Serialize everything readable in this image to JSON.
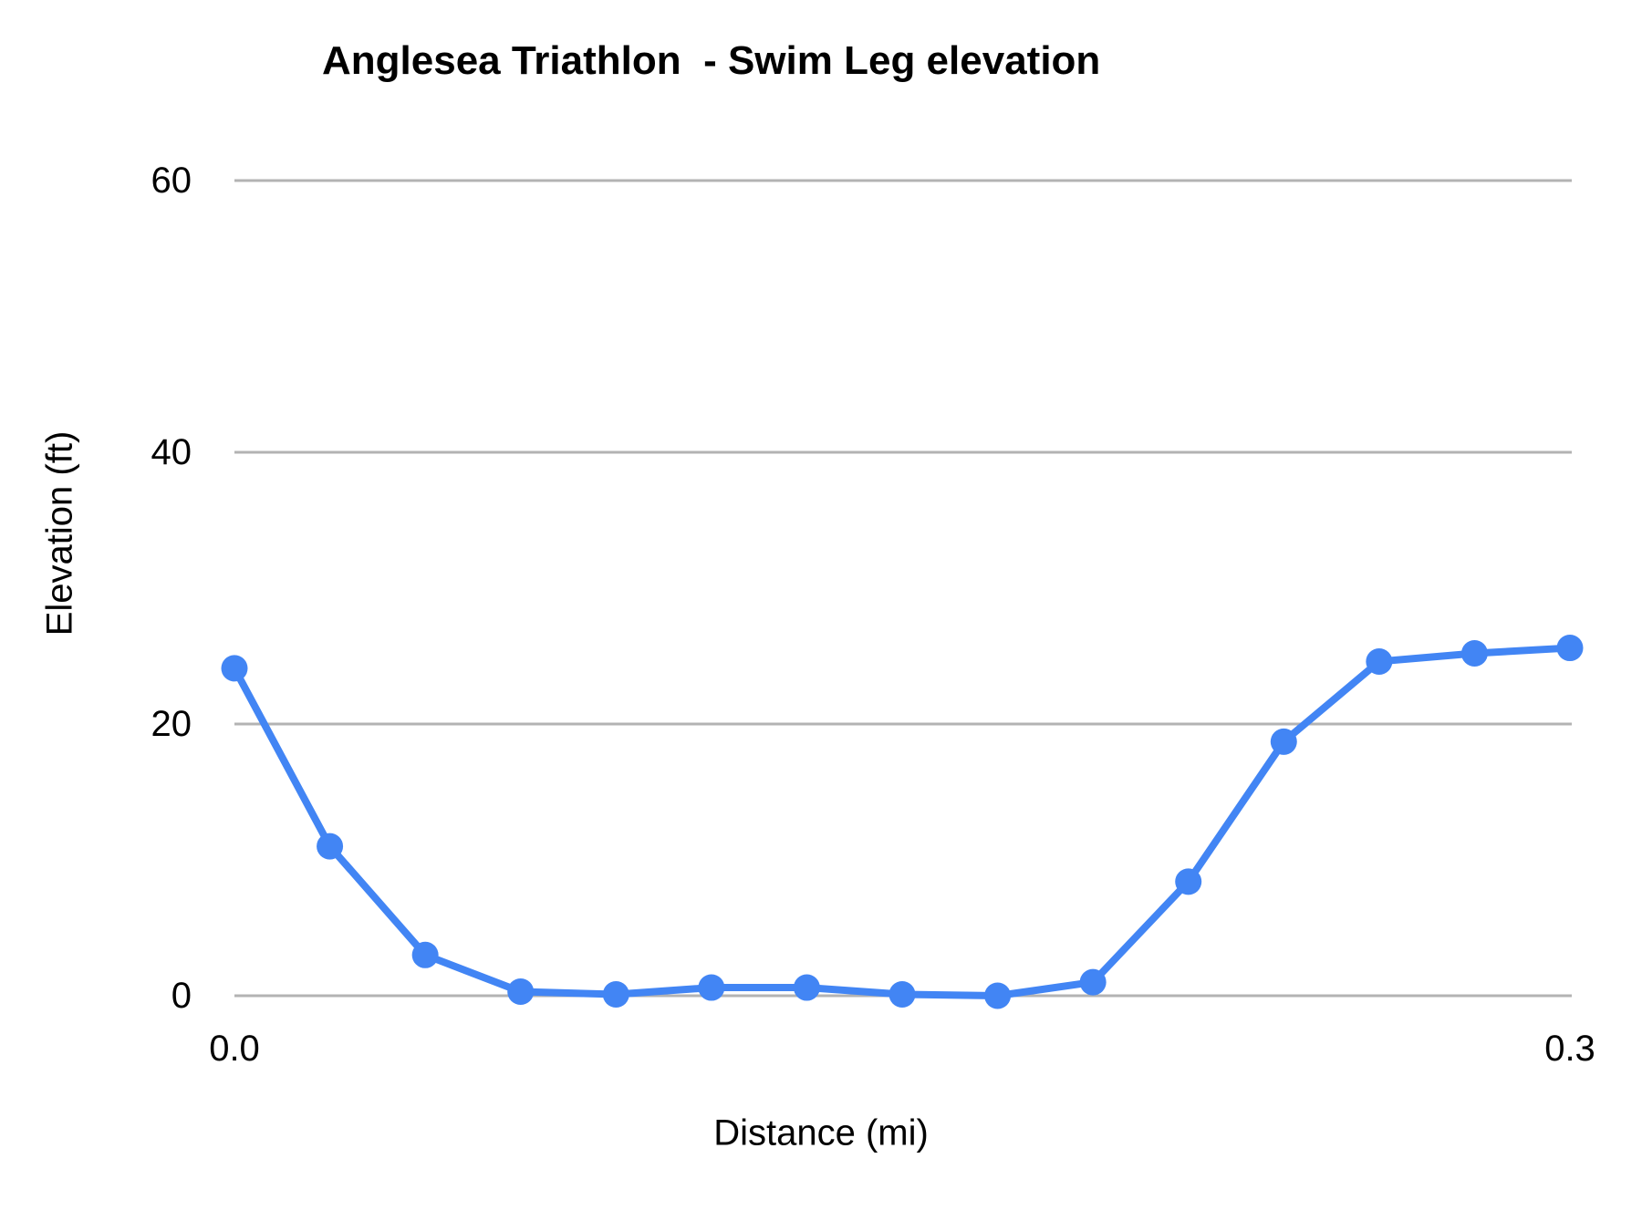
{
  "chart_data": {
    "type": "line",
    "title": "Anglesea Triathlon  - Swim Leg elevation",
    "xlabel": "Distance (mi)",
    "ylabel": "Elevation (ft)",
    "x": [
      0.0,
      0.0214,
      0.0429,
      0.0643,
      0.0857,
      0.1071,
      0.1286,
      0.15,
      0.1714,
      0.1929,
      0.2143,
      0.2357,
      0.2571,
      0.2786,
      0.3
    ],
    "series": [
      {
        "name": "Elevation (ft)",
        "values": [
          24.1,
          11.0,
          3.0,
          0.3,
          0.1,
          0.6,
          0.6,
          0.1,
          0.0,
          1.0,
          8.4,
          18.7,
          24.6,
          25.2,
          25.6
        ]
      }
    ],
    "xlim": [
      0.0,
      0.3
    ],
    "ylim": [
      0,
      60
    ],
    "y_ticks": [
      60,
      40,
      20,
      0
    ],
    "y_tick_labels": [
      "60",
      "40",
      "20",
      "0"
    ],
    "x_tick_indices": [
      0,
      14
    ],
    "x_tick_labels": [
      "0.0",
      "0.3"
    ],
    "grid": "horizontal",
    "legend": "none",
    "marker": "circle"
  },
  "colors": {
    "series": "#4285f4",
    "gridline": "#b3b3b3",
    "text": "#000000"
  }
}
